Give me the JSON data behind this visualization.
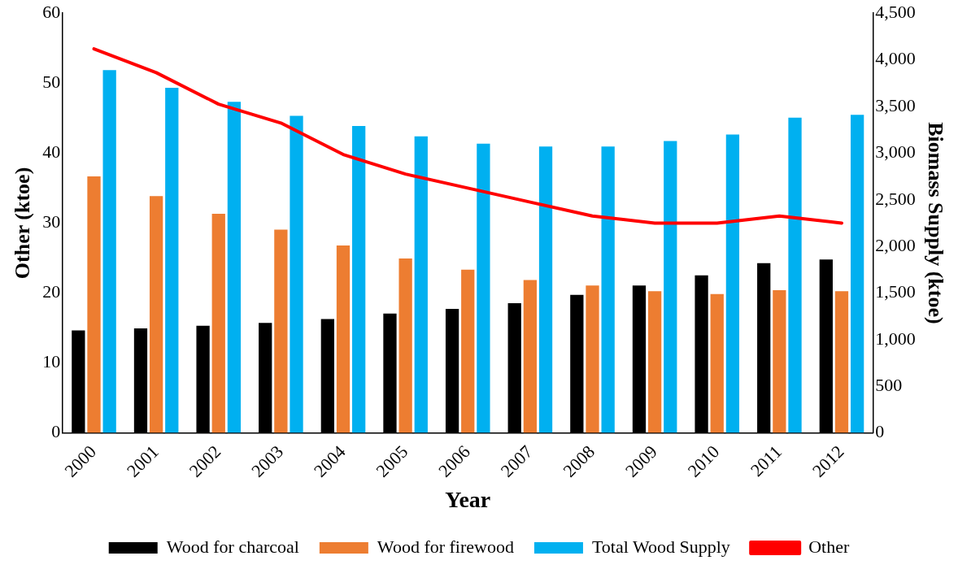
{
  "chart_data": {
    "type": "bar",
    "xlabel": "Year",
    "ylabel": "Other (ktoe)",
    "y2label": "Biomass Supply (ktoe)",
    "categories": [
      "2000",
      "2001",
      "2002",
      "2003",
      "2004",
      "2005",
      "2006",
      "2007",
      "2008",
      "2009",
      "2010",
      "2011",
      "2012"
    ],
    "series": [
      {
        "name": "Wood for charcoal",
        "axis": "y2",
        "color": "#000000",
        "values": [
          1100,
          1120,
          1150,
          1180,
          1220,
          1280,
          1330,
          1390,
          1480,
          1580,
          1690,
          1820,
          1860
        ]
      },
      {
        "name": "Wood for firewood",
        "axis": "y2",
        "color": "#ed7d31",
        "values": [
          2750,
          2540,
          2350,
          2180,
          2010,
          1870,
          1750,
          1640,
          1580,
          1520,
          1490,
          1530,
          1520
        ]
      },
      {
        "name": "Total Wood Supply",
        "axis": "y2",
        "color": "#00b0f0",
        "values": [
          3890,
          3700,
          3550,
          3400,
          3290,
          3180,
          3100,
          3070,
          3070,
          3130,
          3200,
          3380,
          3410
        ]
      },
      {
        "name": "Other",
        "type": "line",
        "axis": "y",
        "color": "#ff0000",
        "values": [
          54.9,
          51.5,
          47,
          44.3,
          39.8,
          37,
          35,
          33,
          31,
          30,
          30,
          31,
          30
        ]
      }
    ],
    "ylim": [
      0,
      60
    ],
    "yticks": [
      0,
      10,
      20,
      30,
      40,
      50,
      60
    ],
    "y2lim": [
      0,
      4500
    ],
    "y2ticks": [
      0,
      500,
      {
        "value": 1000,
        "label": "1,000"
      },
      {
        "value": 1500,
        "label": "1,500"
      },
      {
        "value": 2000,
        "label": "2,000"
      },
      {
        "value": 2500,
        "label": "2,500"
      },
      {
        "value": 3000,
        "label": "3,000"
      },
      {
        "value": 3500,
        "label": "3,500"
      },
      {
        "value": 4000,
        "label": "4,000"
      },
      {
        "value": 4500,
        "label": "4,500"
      }
    ],
    "grid": false,
    "legend": "bottom",
    "marker": "none",
    "line_style": "solid"
  }
}
